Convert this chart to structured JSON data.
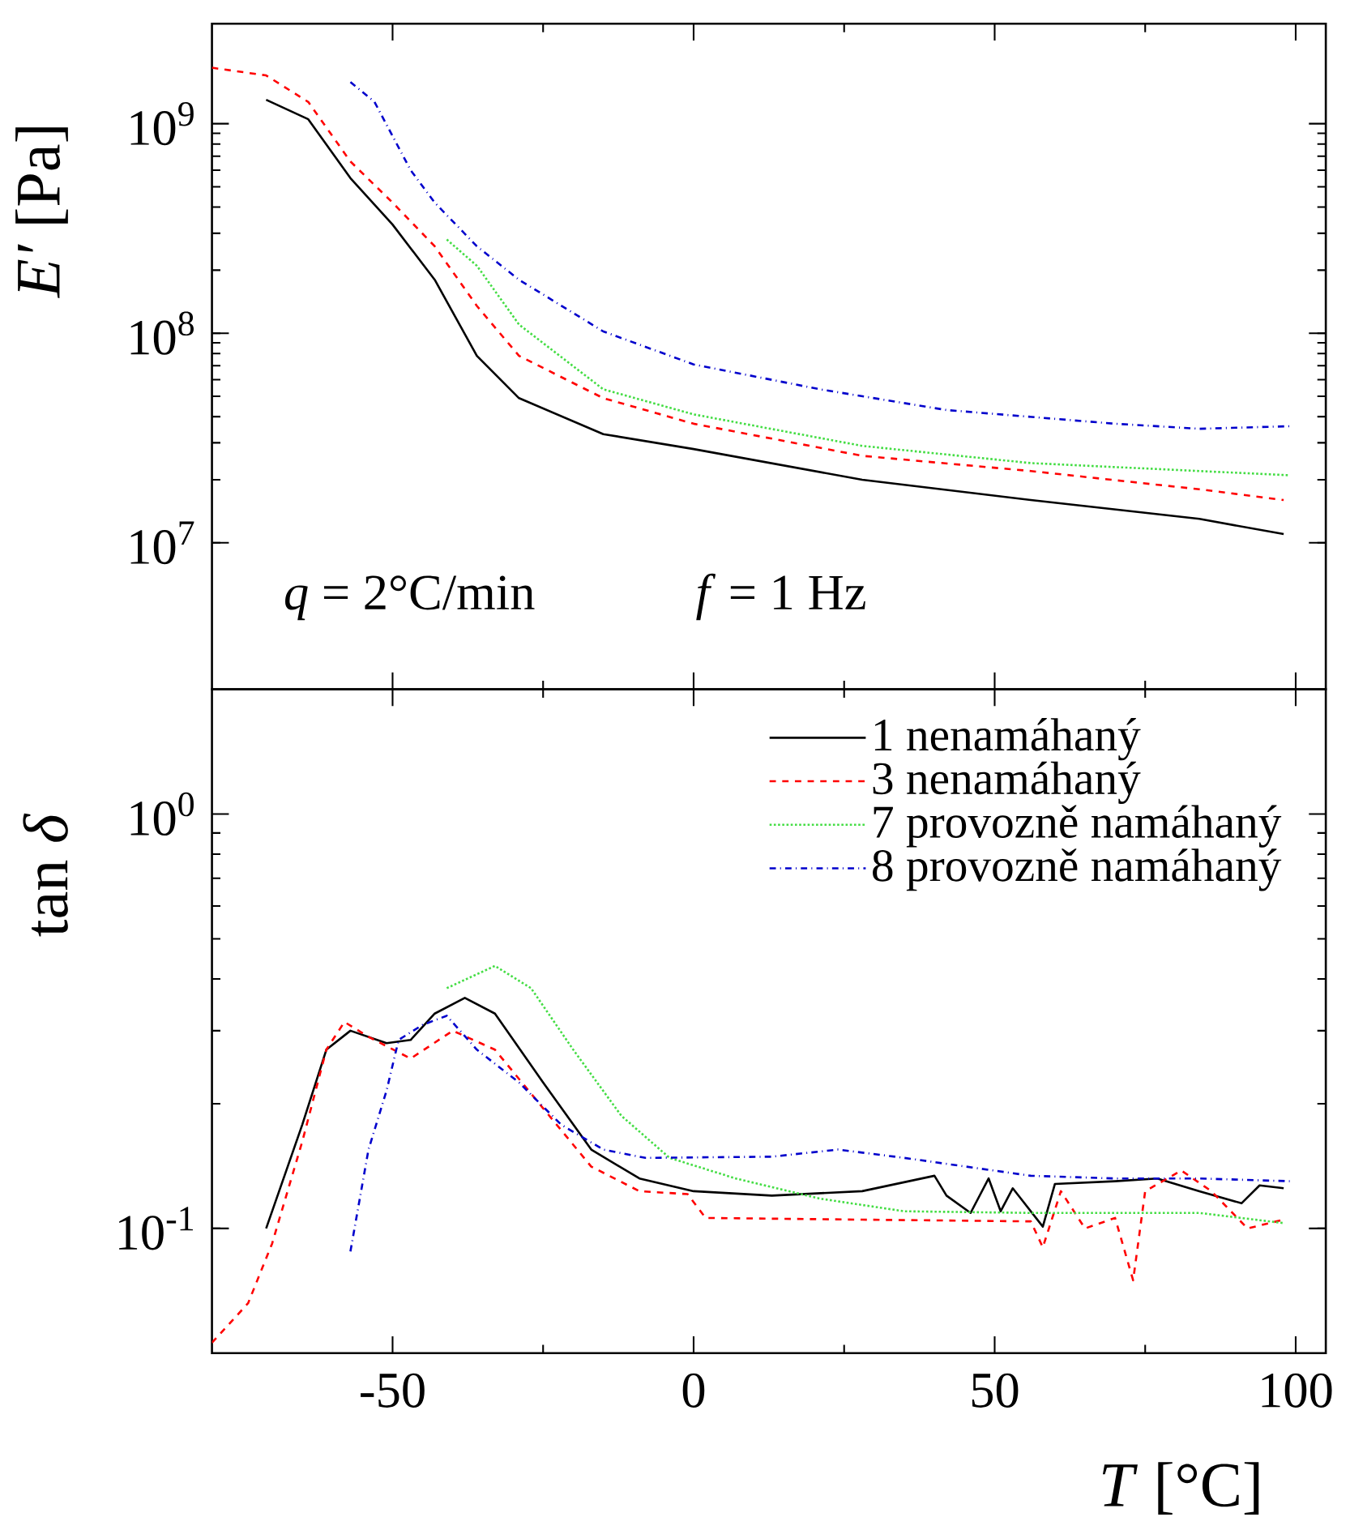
{
  "chart_data": [
    {
      "type": "line",
      "ylabel": "*E′* [Pa]",
      "log": "y",
      "tick_labels": "y",
      "marker": "none",
      "xlim": [
        -80,
        105
      ],
      "xticks": [
        -50,
        0,
        50,
        100
      ],
      "ylim": [
        2000000,
        3000000000
      ],
      "yticks": [
        {
          "value": 10000000,
          "label": "10$^{7}$"
        },
        {
          "value": 100000000,
          "label": "10$^{8}$"
        },
        {
          "value": 1000000000,
          "label": "10$^{9}$"
        }
      ],
      "annotations": [
        "*q* = 2°C/min",
        "*f* = 1 Hz"
      ],
      "series": [
        {
          "color": "#000000",
          "line_style": "solid",
          "x": [
            -71,
            -64,
            -57,
            -50,
            -43,
            -36,
            -29,
            -15,
            0,
            28,
            56,
            84,
            98
          ],
          "values": [
            1300000000,
            1050000000,
            550000000,
            330000000,
            180000000,
            78000000,
            49000000,
            33000000,
            28000000,
            20000000,
            16000000,
            13000000,
            11000000
          ]
        },
        {
          "color": "#ff0000",
          "line_style": "dashed",
          "x": [
            -80,
            -71,
            -64,
            -57,
            -50,
            -43,
            -36,
            -29,
            -15,
            0,
            28,
            56,
            84,
            98
          ],
          "values": [
            1850000000,
            1700000000,
            1270000000,
            660000000,
            420000000,
            260000000,
            135000000,
            78000000,
            49000000,
            37000000,
            26000000,
            22000000,
            18000000,
            16000000
          ]
        },
        {
          "color": "#44dd44",
          "line_style": "dotted",
          "x": [
            -41,
            -36,
            -29,
            -15,
            0,
            28,
            56,
            84,
            99
          ],
          "values": [
            280000000,
            210000000,
            110000000,
            54000000,
            41000000,
            29000000,
            24000000,
            22000000,
            21000000
          ]
        },
        {
          "color": "#0000cc",
          "line_style": "dashdot",
          "x": [
            -57,
            -53,
            -47,
            -43,
            -36,
            -29,
            -15,
            0,
            21,
            42,
            70,
            84,
            99
          ],
          "values": [
            1580000000,
            1270000000,
            600000000,
            420000000,
            260000000,
            180000000,
            102000000,
            71000000,
            54000000,
            43000000,
            37000000,
            35000000,
            36000000
          ]
        }
      ]
    },
    {
      "type": "line",
      "ylabel": "tan *δ*",
      "xlabel": "*T* [°C]",
      "log": "y",
      "marker": "none",
      "legend": "top right",
      "xlim": [
        -80,
        105
      ],
      "xticks": [
        -50,
        0,
        50,
        100
      ],
      "ylim": [
        0.05,
        2
      ],
      "yticks": [
        {
          "value": 0.1,
          "label": "10$^{-1}$"
        },
        {
          "value": 1,
          "label": "10$^{0}$"
        }
      ],
      "series": [
        {
          "name": "1 nenamáhaný",
          "color": "#000000",
          "line_style": "solid",
          "x": [
            -71,
            -65,
            -61,
            -57,
            -51,
            -47,
            -43,
            -38,
            -33,
            -25,
            -17,
            -9,
            0,
            13,
            28,
            40,
            42,
            46,
            49,
            51,
            53,
            58,
            60,
            70,
            77,
            84,
            91,
            94,
            98
          ],
          "values": [
            0.1,
            0.178,
            0.27,
            0.3,
            0.28,
            0.285,
            0.33,
            0.36,
            0.33,
            0.225,
            0.155,
            0.132,
            0.123,
            0.12,
            0.123,
            0.134,
            0.12,
            0.109,
            0.132,
            0.11,
            0.125,
            0.101,
            0.128,
            0.13,
            0.132,
            0.123,
            0.115,
            0.127,
            0.125
          ]
        },
        {
          "name": "3 nenamáhaný",
          "color": "#ff0000",
          "line_style": "dashed",
          "x": [
            -80,
            -74,
            -70,
            -65,
            -61,
            -58,
            -54,
            -47,
            -40,
            -33,
            -25,
            -17,
            -9,
            -1,
            2,
            28,
            56,
            58,
            61,
            65,
            70,
            73,
            75,
            81,
            86,
            92,
            98
          ],
          "values": [
            0.053,
            0.066,
            0.092,
            0.162,
            0.27,
            0.315,
            0.29,
            0.257,
            0.3,
            0.27,
            0.195,
            0.141,
            0.123,
            0.121,
            0.106,
            0.105,
            0.104,
            0.09,
            0.123,
            0.1,
            0.106,
            0.075,
            0.123,
            0.138,
            0.123,
            0.1,
            0.105
          ]
        },
        {
          "name": "7 provozně namáhaný",
          "color": "#44dd44",
          "line_style": "dotted",
          "x": [
            -41,
            -33,
            -27,
            -20,
            -12,
            -4,
            7,
            21,
            35,
            56,
            84,
            98
          ],
          "values": [
            0.38,
            0.43,
            0.38,
            0.27,
            0.187,
            0.148,
            0.132,
            0.118,
            0.11,
            0.109,
            0.109,
            0.103
          ]
        },
        {
          "name": "8 provozně namáhaný",
          "color": "#0000cc",
          "line_style": "dashdot",
          "x": [
            -57,
            -54,
            -51,
            -49,
            -45,
            -41,
            -36,
            -29,
            -22,
            -15,
            -8,
            13,
            24,
            35,
            56,
            70,
            84,
            99
          ],
          "values": [
            0.088,
            0.155,
            0.215,
            0.285,
            0.31,
            0.326,
            0.27,
            0.225,
            0.178,
            0.155,
            0.148,
            0.149,
            0.155,
            0.148,
            0.134,
            0.132,
            0.132,
            0.13
          ]
        }
      ]
    }
  ]
}
